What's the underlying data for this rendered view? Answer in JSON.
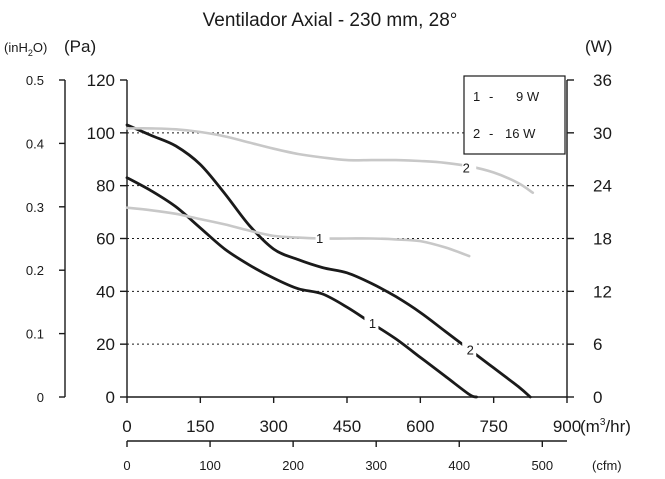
{
  "chart_data": {
    "type": "line",
    "title": "Ventilador Axial - 230 mm, 28°",
    "axes": {
      "pressure_pa": {
        "label": "(Pa)",
        "range": [
          0,
          120
        ],
        "ticks": [
          "0",
          "20",
          "40",
          "60",
          "80",
          "100",
          "120"
        ]
      },
      "pressure_inh2o": {
        "label_pre": "(inH",
        "label_sub": "2",
        "label_post": "O)",
        "range": [
          0,
          0.5
        ],
        "ticks": [
          "0",
          "0.1",
          "0.2",
          "0.3",
          "0.4",
          "0.5"
        ]
      },
      "power_w": {
        "label": "(W)",
        "range": [
          0,
          36
        ],
        "ticks": [
          "0",
          "6",
          "12",
          "18",
          "24",
          "30",
          "36"
        ]
      },
      "flow_m3hr": {
        "label_pre": "(m",
        "label_sup": "3",
        "label_post": "/hr)",
        "range": [
          0,
          900
        ],
        "ticks": [
          "0",
          "150",
          "300",
          "450",
          "600",
          "750",
          "900"
        ]
      },
      "flow_cfm": {
        "label": "(cfm)",
        "ticks": [
          "0",
          "100",
          "200",
          "300",
          "400",
          "500"
        ],
        "values": [
          0,
          100,
          200,
          300,
          400,
          500
        ]
      }
    },
    "grid": "dotted horizontal",
    "legend": {
      "placement": "top-right",
      "entries": [
        {
          "num": "1",
          "sep": "-",
          "text": "9 W"
        },
        {
          "num": "2",
          "sep": "-",
          "text": "16 W"
        }
      ]
    },
    "series": [
      {
        "label": "1",
        "kind": "pressure",
        "color": "#1a1a1a",
        "x": [
          0,
          50,
          100,
          150,
          200,
          250,
          300,
          350,
          400,
          450,
          500,
          550,
          600,
          650,
          700,
          715
        ],
        "y": [
          83,
          78,
          72,
          64,
          56,
          50,
          45,
          41,
          39,
          34,
          28,
          22,
          15,
          8,
          1,
          0
        ]
      },
      {
        "label": "2",
        "kind": "pressure",
        "color": "#1a1a1a",
        "x": [
          0,
          50,
          100,
          150,
          200,
          250,
          300,
          350,
          400,
          450,
          500,
          550,
          600,
          650,
          700,
          750,
          800,
          825
        ],
        "y": [
          103,
          99,
          95,
          88,
          77,
          65,
          56,
          52,
          49,
          47,
          43,
          38,
          32,
          25,
          18,
          11,
          4,
          0
        ]
      },
      {
        "label": "1",
        "kind": "power",
        "color": "#c8c8c8",
        "x": [
          0,
          50,
          100,
          150,
          200,
          250,
          300,
          350,
          400,
          450,
          500,
          550,
          600,
          650,
          700
        ],
        "y": [
          21.5,
          21.2,
          20.8,
          20.2,
          19.6,
          18.9,
          18.3,
          18.1,
          18.0,
          18.0,
          18.0,
          17.9,
          17.7,
          17.0,
          16.0
        ]
      },
      {
        "label": "2",
        "kind": "power",
        "color": "#c8c8c8",
        "x": [
          0,
          50,
          100,
          150,
          200,
          250,
          300,
          350,
          400,
          450,
          500,
          550,
          600,
          650,
          700,
          750,
          800,
          830
        ],
        "y": [
          30.5,
          30.5,
          30.4,
          30.1,
          29.6,
          28.9,
          28.2,
          27.6,
          27.2,
          26.9,
          26.9,
          26.9,
          26.8,
          26.6,
          26.2,
          25.5,
          24.3,
          23.2
        ]
      }
    ]
  }
}
